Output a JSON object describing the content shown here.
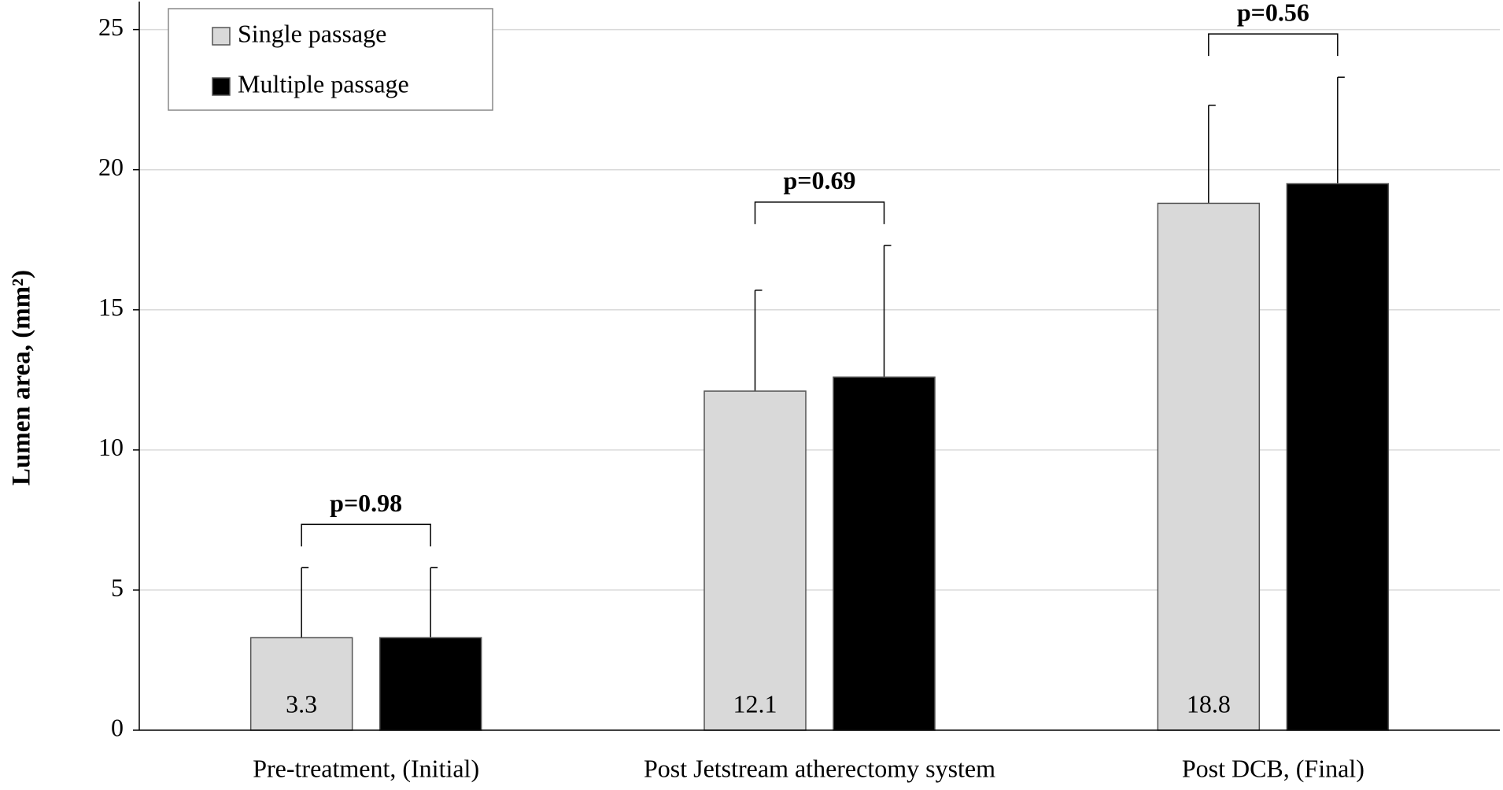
{
  "chart_data": {
    "type": "bar",
    "y_label": "Lumen area, (mm²)",
    "categories": [
      "Pre-treatment, (Initial)",
      "Post Jetstream atherectomy system",
      "Post DCB, (Final)"
    ],
    "series": [
      {
        "name": "Single passage",
        "color": "#d9d9d9",
        "values": [
          3.3,
          12.1,
          18.8
        ],
        "errors": [
          2.5,
          3.6,
          3.5
        ]
      },
      {
        "name": "Multiple passage",
        "color": "#000000",
        "values": [
          3.3,
          12.6,
          19.5
        ],
        "errors": [
          2.5,
          4.7,
          3.8
        ]
      }
    ],
    "annotations": [
      "p=0.98",
      "p=0.69",
      "p=0.56"
    ],
    "ylim": [
      0,
      26
    ],
    "yticks": [
      0,
      5,
      10,
      15,
      20,
      25
    ],
    "grid": true,
    "legend": "upper-left"
  }
}
